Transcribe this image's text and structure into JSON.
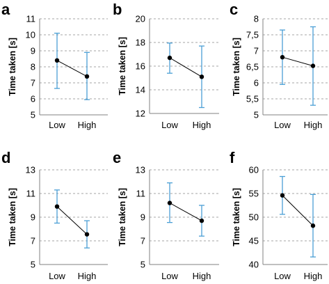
{
  "chart_data": [
    {
      "panel": "a",
      "type": "line",
      "categories": [
        "Low",
        "High"
      ],
      "ylabel": "Time taken [s]",
      "ylim": [
        5,
        11
      ],
      "yticks": [
        5,
        6,
        7,
        8,
        9,
        10,
        11
      ],
      "ytick_labels": [
        "5",
        "6",
        "7",
        "8",
        "9",
        "10",
        "11"
      ],
      "values": [
        8.4,
        7.4
      ],
      "error_low": [
        6.65,
        5.95
      ],
      "error_high": [
        10.1,
        8.9
      ],
      "grid": true
    },
    {
      "panel": "b",
      "type": "line",
      "categories": [
        "Low",
        "High"
      ],
      "ylabel": "Time taken [s]",
      "ylim": [
        12,
        20
      ],
      "yticks": [
        12,
        14,
        16,
        18,
        20
      ],
      "ytick_labels": [
        "12",
        "14",
        "16",
        "18",
        "20"
      ],
      "values": [
        16.7,
        15.1
      ],
      "error_low": [
        15.4,
        12.5
      ],
      "error_high": [
        17.95,
        17.7
      ],
      "grid": true
    },
    {
      "panel": "c",
      "type": "line",
      "categories": [
        "Low",
        "High"
      ],
      "ylabel": "Time taken [s]",
      "ylim": [
        5,
        8
      ],
      "yticks": [
        5,
        5.5,
        6,
        6.5,
        7,
        7.5,
        8
      ],
      "ytick_labels": [
        "5",
        "5,5",
        "6",
        "6,5",
        "7",
        "7,5",
        "8"
      ],
      "values": [
        6.8,
        6.53
      ],
      "error_low": [
        5.95,
        5.3
      ],
      "error_high": [
        7.65,
        7.75
      ],
      "grid": true
    },
    {
      "panel": "d",
      "type": "line",
      "categories": [
        "Low",
        "High"
      ],
      "ylabel": "Time taken [s]",
      "ylim": [
        5,
        13
      ],
      "yticks": [
        5,
        7,
        9,
        11,
        13
      ],
      "ytick_labels": [
        "5",
        "7",
        "9",
        "11",
        "13"
      ],
      "values": [
        9.9,
        7.55
      ],
      "error_low": [
        8.5,
        6.4
      ],
      "error_high": [
        11.3,
        8.7
      ],
      "grid": true
    },
    {
      "panel": "e",
      "type": "line",
      "categories": [
        "Low",
        "High"
      ],
      "ylabel": "Time taken [s]",
      "ylim": [
        5,
        13
      ],
      "yticks": [
        5,
        7,
        9,
        11,
        13
      ],
      "ytick_labels": [
        "5",
        "7",
        "9",
        "11",
        "13"
      ],
      "values": [
        10.2,
        8.7
      ],
      "error_low": [
        8.55,
        7.4
      ],
      "error_high": [
        11.9,
        10.0
      ],
      "grid": true
    },
    {
      "panel": "f",
      "type": "line",
      "categories": [
        "Low",
        "High"
      ],
      "ylabel": "Time taken [s]",
      "ylim": [
        40,
        60
      ],
      "yticks": [
        40,
        45,
        50,
        55,
        60
      ],
      "ytick_labels": [
        "40",
        "45",
        "50",
        "55",
        "60"
      ],
      "values": [
        54.6,
        48.2
      ],
      "error_low": [
        50.6,
        41.6
      ],
      "error_high": [
        58.6,
        54.8
      ],
      "grid": true
    }
  ],
  "colors": {
    "marker": "#000000",
    "line": "#000000",
    "error_bar": "#4a9fd5",
    "grid": "#a6a6a6",
    "axis": "#808080"
  }
}
